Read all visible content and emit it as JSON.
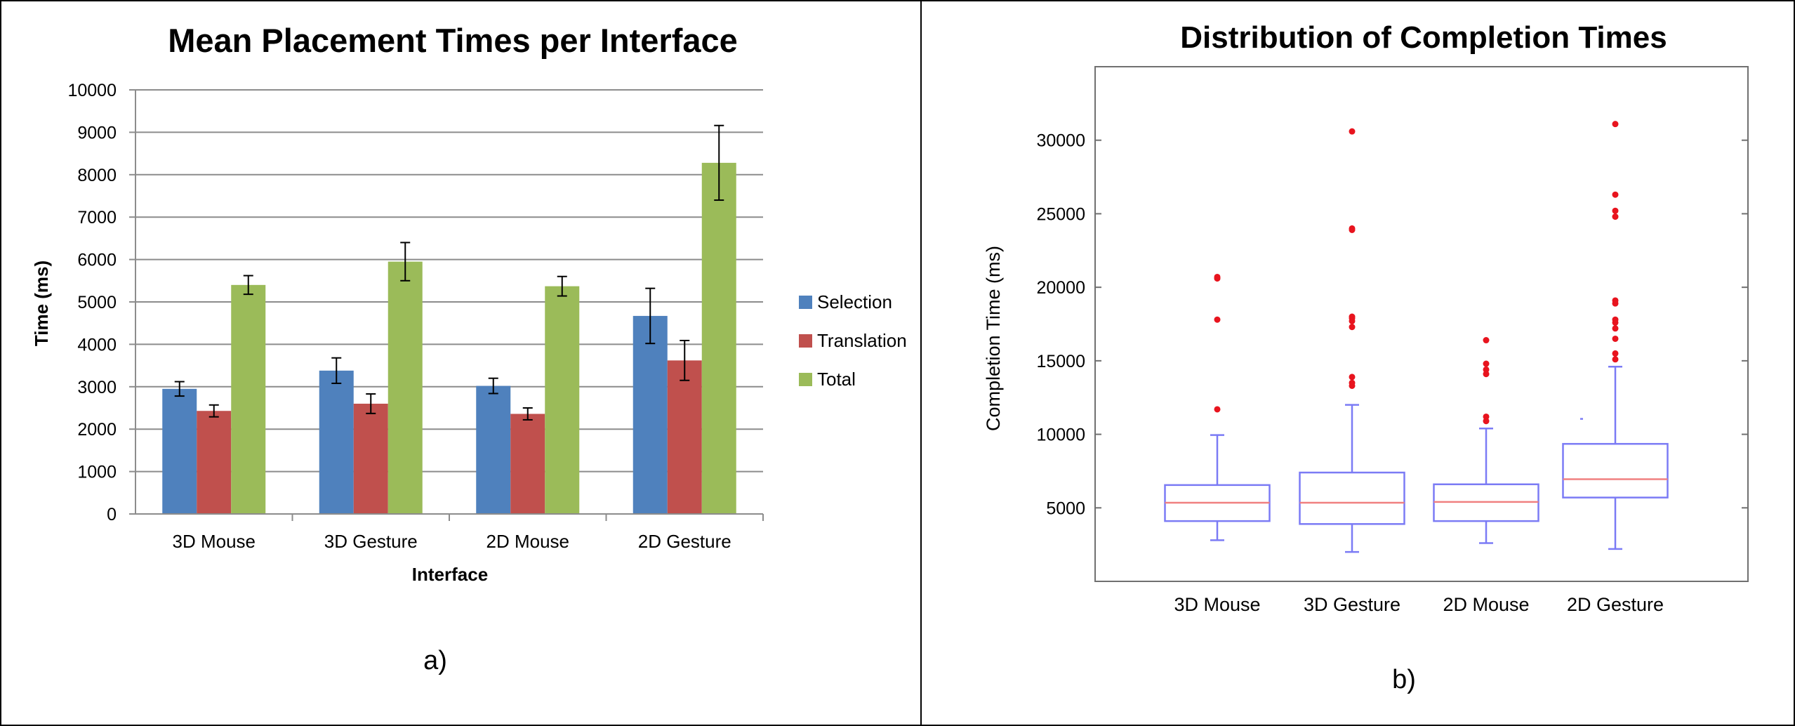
{
  "colors": {
    "selection": "#4F81BD",
    "translation": "#C0504D",
    "total": "#9BBB59",
    "box": "#7B7BF5",
    "median": "#F08080",
    "outlier": "#E8141E",
    "grid": "#8C8C8C",
    "frame": "#707070"
  },
  "chart_data": [
    {
      "panel_label": "a)",
      "type": "bar",
      "title": "Mean Placement Times per Interface",
      "xlabel": "Interface",
      "ylabel": "Time (ms)",
      "ylim": [
        0,
        10000
      ],
      "yticks": [
        0,
        1000,
        2000,
        3000,
        4000,
        5000,
        6000,
        7000,
        8000,
        9000,
        10000
      ],
      "grid": true,
      "legend_position": "right",
      "categories": [
        "3D Mouse",
        "3D Gesture",
        "2D Mouse",
        "2D Gesture"
      ],
      "series": [
        {
          "name": "Selection",
          "color_key": "selection",
          "values": [
            2950,
            3380,
            3020,
            4670
          ],
          "error": [
            170,
            300,
            180,
            650
          ]
        },
        {
          "name": "Translation",
          "color_key": "translation",
          "values": [
            2430,
            2600,
            2360,
            3620
          ],
          "error": [
            140,
            230,
            140,
            470
          ]
        },
        {
          "name": "Total",
          "color_key": "total",
          "values": [
            5400,
            5950,
            5370,
            8280
          ],
          "error": [
            220,
            450,
            230,
            880
          ]
        }
      ]
    },
    {
      "panel_label": "b)",
      "type": "box",
      "title": "Distribution of Completion Times",
      "xlabel": "",
      "ylabel": "Completion Time (ms)",
      "ylim": [
        0,
        35000
      ],
      "yticks": [
        5000,
        10000,
        15000,
        20000,
        25000,
        30000
      ],
      "grid": false,
      "categories": [
        "3D Mouse",
        "3D Gesture",
        "2D Mouse",
        "2D Gesture"
      ],
      "boxes": [
        {
          "whisker_low": 2800,
          "q1": 4100,
          "median": 5350,
          "q3": 6550,
          "whisker_high": 9950,
          "outliers": [
            11700,
            17800,
            20600,
            20700
          ]
        },
        {
          "whisker_low": 2000,
          "q1": 3900,
          "median": 5350,
          "q3": 7400,
          "whisker_high": 12000,
          "outliers": [
            13300,
            13500,
            13900,
            17300,
            17700,
            17900,
            18000,
            23900,
            24000,
            30600
          ]
        },
        {
          "whisker_low": 2600,
          "q1": 4100,
          "median": 5400,
          "q3": 6600,
          "whisker_high": 10400,
          "outliers": [
            10900,
            11200,
            14100,
            14400,
            14800,
            16400
          ]
        },
        {
          "whisker_low": 2200,
          "q1": 5700,
          "median": 6950,
          "q3": 9350,
          "whisker_high": 14600,
          "outliers": [
            15100,
            15500,
            16500,
            17200,
            17600,
            17800,
            18900,
            19100,
            24800,
            25200,
            26300,
            31100
          ]
        }
      ],
      "stray_marks": [
        {
          "category_index": 3,
          "value": 11050
        }
      ]
    }
  ]
}
